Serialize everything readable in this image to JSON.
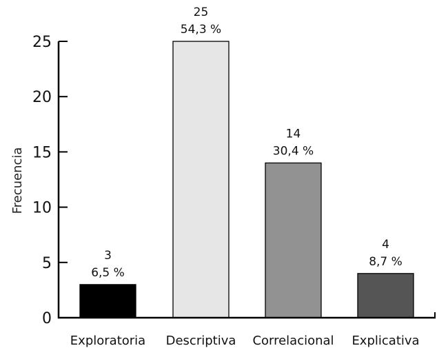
{
  "chart_data": {
    "type": "bar",
    "title": "",
    "xlabel": "",
    "ylabel": "Frecuencia",
    "ylim": [
      0,
      25
    ],
    "yticks": [
      0,
      5,
      10,
      15,
      20,
      25
    ],
    "grid": false,
    "legend": null,
    "categories": [
      "Exploratoria",
      "Descriptiva",
      "Correlacional",
      "Explicativa"
    ],
    "values": [
      3,
      25,
      14,
      4
    ],
    "percent_labels": [
      "6,5 %",
      "54,3 %",
      "30,4 %",
      "8,7 %"
    ],
    "colors": [
      "#000000",
      "#e6e6e6",
      "#929292",
      "#555555"
    ]
  }
}
